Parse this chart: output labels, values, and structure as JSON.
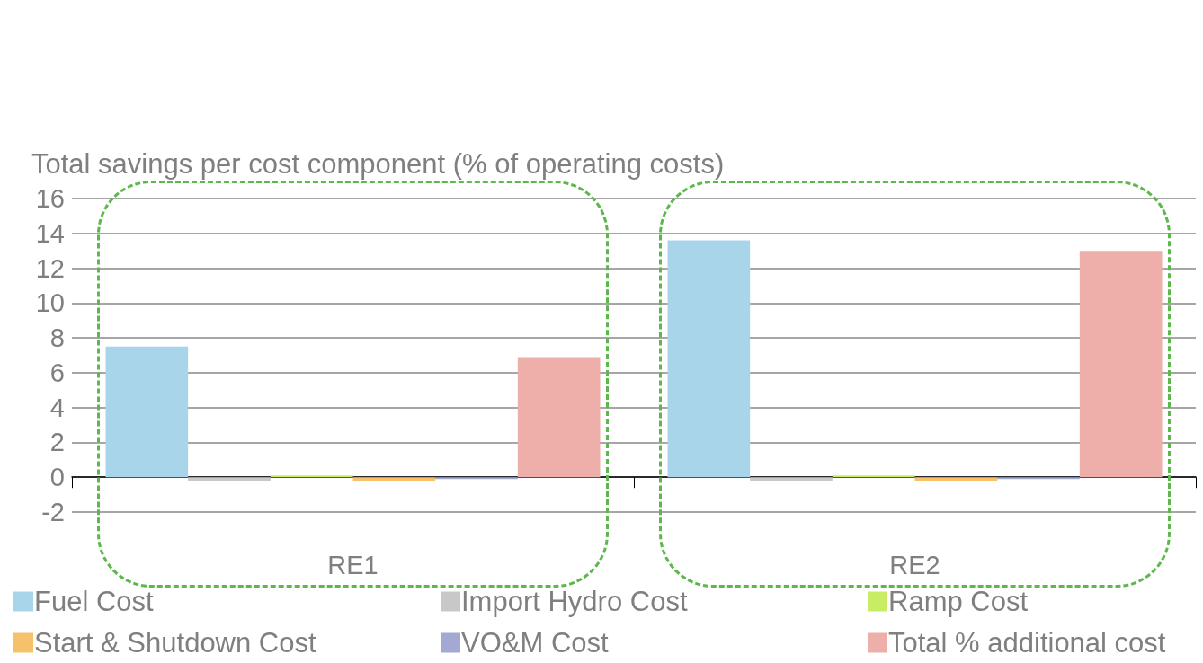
{
  "chart_data": {
    "type": "bar",
    "ylabel": "Total savings per cost component (% of operating costs)",
    "categories": [
      "RE1",
      "RE2"
    ],
    "series": [
      {
        "name": "Fuel Cost",
        "color": "#a9d5ea",
        "values": [
          7.5,
          13.6
        ]
      },
      {
        "name": "Import Hydro Cost",
        "color": "#c8c8c8",
        "values": [
          -0.2,
          -0.2
        ]
      },
      {
        "name": "Ramp Cost",
        "color": "#c8ec64",
        "values": [
          0.1,
          0.1
        ]
      },
      {
        "name": "Start & Shutdown Cost",
        "color": "#f5c26b",
        "values": [
          -0.2,
          -0.2
        ]
      },
      {
        "name": "VO&M Cost",
        "color": "#a3a9d2",
        "values": [
          -0.1,
          -0.1
        ]
      },
      {
        "name": "Total % additional cost",
        "color": "#eeaeaa",
        "values": [
          6.9,
          13.0
        ]
      }
    ],
    "ylim": [
      -2,
      16
    ],
    "yticks": [
      -2,
      0,
      2,
      4,
      6,
      8,
      10,
      12,
      14,
      16
    ],
    "grid": "y",
    "legend": "bottom"
  }
}
